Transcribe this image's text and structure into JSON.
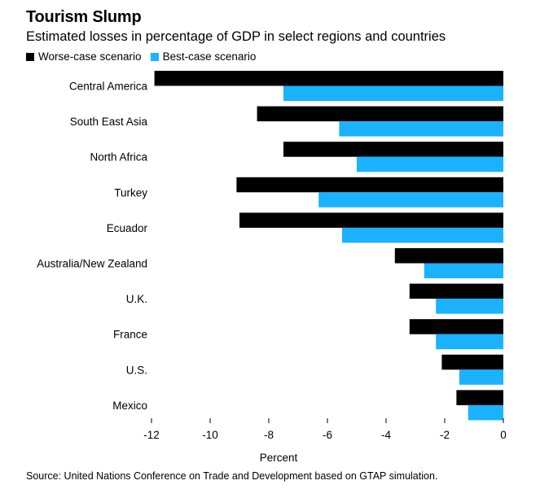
{
  "chart_data": {
    "type": "bar",
    "orientation": "horizontal",
    "title": "Tourism Slump",
    "subtitle": "Estimated losses in percentage of GDP in select regions and countries",
    "xlabel": "Percent",
    "ylabel": "",
    "xlim": [
      -12,
      0
    ],
    "xticks": [
      -12,
      -10,
      -8,
      -6,
      -4,
      -2,
      0
    ],
    "legend_position": "top-left",
    "categories": [
      "Central America",
      "South East Asia",
      "North Africa",
      "Turkey",
      "Ecuador",
      "Australia/New Zealand",
      "U.K.",
      "France",
      "U.S.",
      "Mexico"
    ],
    "series": [
      {
        "name": "Worse-case scenario",
        "color": "#000000",
        "values": [
          -11.9,
          -8.4,
          -7.5,
          -9.1,
          -9.0,
          -3.7,
          -3.2,
          -3.2,
          -2.1,
          -1.6
        ]
      },
      {
        "name": "Best-case scenario",
        "color": "#1bb2ff",
        "values": [
          -7.5,
          -5.6,
          -5.0,
          -6.3,
          -5.5,
          -2.7,
          -2.3,
          -2.3,
          -1.5,
          -1.2
        ]
      }
    ],
    "source": "Source: United Nations Conference on Trade and Development based on GTAP simulation."
  }
}
